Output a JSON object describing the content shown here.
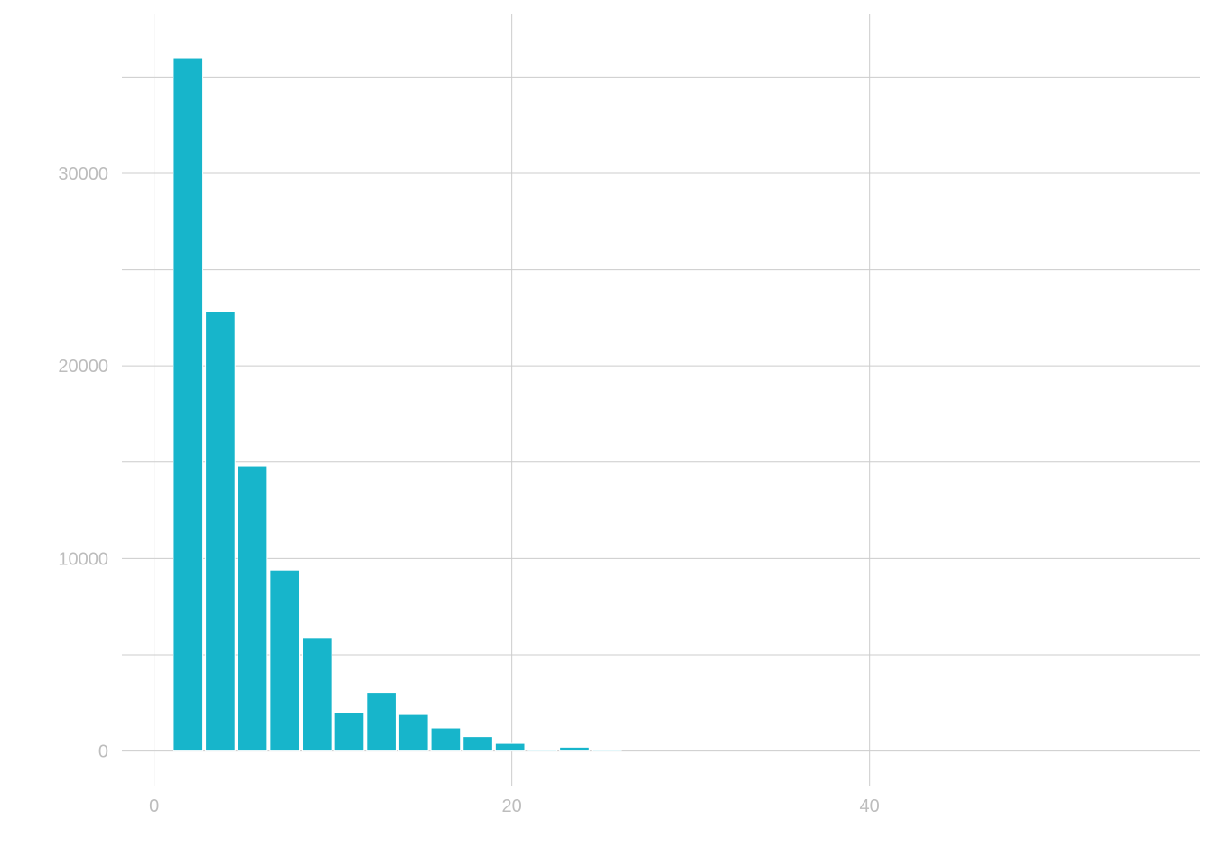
{
  "chart_data": {
    "type": "bar",
    "title": "",
    "xlabel": "",
    "ylabel": "",
    "bar_color": "#17b5cb",
    "bin_width": 1.8,
    "bins": [
      {
        "x0": 1.0,
        "x1": 2.8,
        "count": 36000
      },
      {
        "x0": 2.8,
        "x1": 4.6,
        "count": 22800
      },
      {
        "x0": 4.6,
        "x1": 6.4,
        "count": 14800
      },
      {
        "x0": 6.4,
        "x1": 8.2,
        "count": 9400
      },
      {
        "x0": 8.2,
        "x1": 10.0,
        "count": 5900
      },
      {
        "x0": 10.0,
        "x1": 11.8,
        "count": 2000
      },
      {
        "x0": 11.8,
        "x1": 13.6,
        "count": 3050
      },
      {
        "x0": 13.6,
        "x1": 15.4,
        "count": 1900
      },
      {
        "x0": 15.4,
        "x1": 17.2,
        "count": 1200
      },
      {
        "x0": 17.2,
        "x1": 19.0,
        "count": 750
      },
      {
        "x0": 19.0,
        "x1": 20.8,
        "count": 400
      },
      {
        "x0": 20.8,
        "x1": 22.6,
        "count": 60
      },
      {
        "x0": 22.6,
        "x1": 24.4,
        "count": 200
      },
      {
        "x0": 24.4,
        "x1": 26.2,
        "count": 80
      }
    ],
    "xlim": [
      -1.8,
      58.5
    ],
    "ylim": [
      -1800,
      38300
    ],
    "x_ticks": [
      0,
      20,
      40
    ],
    "x_tick_labels": [
      "0",
      "20",
      "40"
    ],
    "y_ticks": [
      0,
      10000,
      20000,
      30000
    ],
    "y_tick_labels": [
      "0",
      "10000",
      "20000",
      "30000"
    ],
    "y_minor_gridlines": [
      5000,
      15000,
      25000,
      35000
    ],
    "grid": true,
    "legend": "none"
  }
}
